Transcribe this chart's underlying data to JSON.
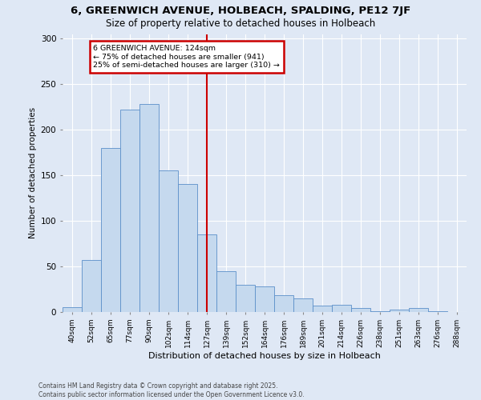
{
  "title1": "6, GREENWICH AVENUE, HOLBEACH, SPALDING, PE12 7JF",
  "title2": "Size of property relative to detached houses in Holbeach",
  "xlabel": "Distribution of detached houses by size in Holbeach",
  "ylabel": "Number of detached properties",
  "footer1": "Contains HM Land Registry data © Crown copyright and database right 2025.",
  "footer2": "Contains public sector information licensed under the Open Government Licence v3.0.",
  "property_label": "6 GREENWICH AVENUE: 124sqm",
  "annotation_line1": "← 75% of detached houses are smaller (941)",
  "annotation_line2": "25% of semi-detached houses are larger (310) →",
  "categories": [
    "40sqm",
    "52sqm",
    "65sqm",
    "77sqm",
    "90sqm",
    "102sqm",
    "114sqm",
    "127sqm",
    "139sqm",
    "152sqm",
    "164sqm",
    "176sqm",
    "189sqm",
    "201sqm",
    "214sqm",
    "226sqm",
    "238sqm",
    "251sqm",
    "263sqm",
    "276sqm",
    "288sqm"
  ],
  "values": [
    5,
    57,
    180,
    222,
    228,
    155,
    140,
    85,
    45,
    30,
    28,
    18,
    15,
    7,
    8,
    4,
    1,
    3,
    4,
    1,
    0
  ],
  "bar_color": "#c5d9ee",
  "bar_edge_color": "#5b8fc9",
  "vline_color": "#cc0000",
  "annotation_box_color": "#cc0000",
  "bg_color": "#dfe8f5",
  "grid_color": "#ffffff",
  "ylim": [
    0,
    305
  ],
  "yticks": [
    0,
    50,
    100,
    150,
    200,
    250,
    300
  ]
}
